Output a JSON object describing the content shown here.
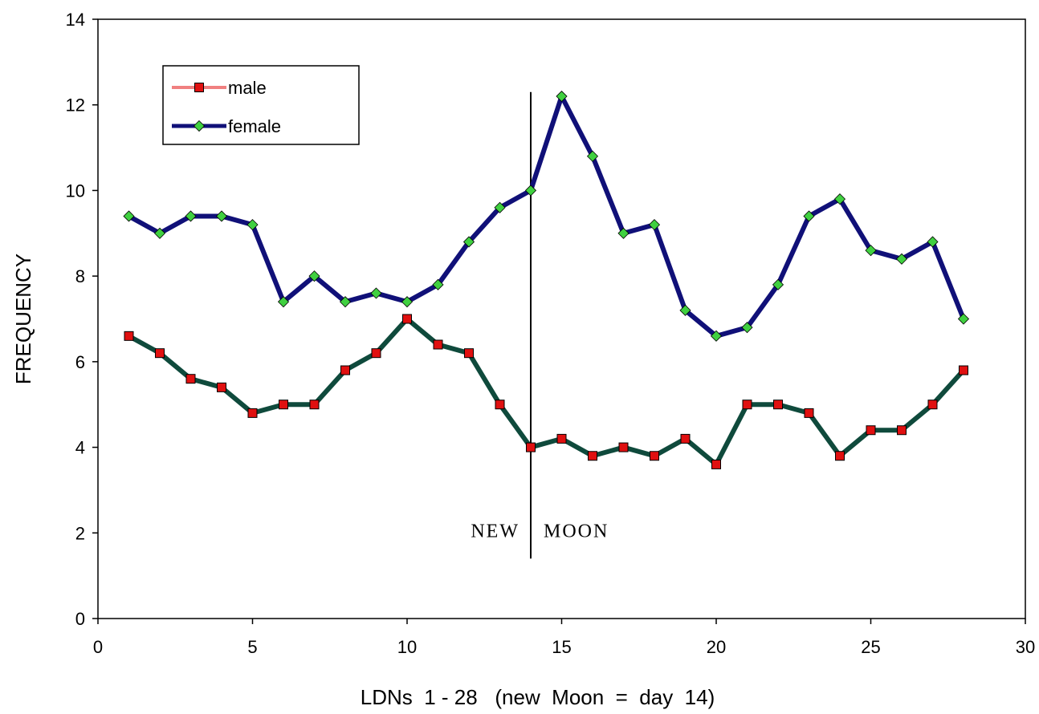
{
  "chart_data": {
    "type": "line",
    "title": "",
    "xlabel": "LDNs  1 - 28   (new  Moon  =  day  14)",
    "ylabel": "FREQUENCY",
    "xlim": [
      0,
      30
    ],
    "ylim": [
      0,
      14
    ],
    "xticks": [
      0,
      5,
      10,
      15,
      20,
      25,
      30
    ],
    "yticks": [
      0,
      2,
      4,
      6,
      8,
      10,
      12,
      14
    ],
    "grid": false,
    "legend_position": "top-left",
    "x": [
      1,
      2,
      3,
      4,
      5,
      6,
      7,
      8,
      9,
      10,
      11,
      12,
      13,
      14,
      15,
      16,
      17,
      18,
      19,
      20,
      21,
      22,
      23,
      24,
      25,
      26,
      27,
      28
    ],
    "series": [
      {
        "name": "male",
        "legend_line_color": "#f08080",
        "line_color": "#0f4a3c",
        "marker": "square",
        "marker_color": "#e01010",
        "values": [
          6.6,
          6.2,
          5.6,
          5.4,
          4.8,
          5.0,
          5.0,
          5.8,
          6.2,
          7.0,
          6.4,
          6.2,
          5.0,
          4.0,
          4.2,
          3.8,
          4.0,
          3.8,
          4.2,
          3.6,
          5.0,
          5.0,
          4.8,
          3.8,
          4.4,
          4.4,
          5.0,
          5.8
        ]
      },
      {
        "name": "female",
        "legend_line_color": "#101078",
        "line_color": "#101078",
        "marker": "diamond",
        "marker_color": "#40d040",
        "values": [
          9.4,
          9.0,
          9.4,
          9.4,
          9.2,
          7.4,
          8.0,
          7.4,
          7.6,
          7.4,
          7.8,
          8.8,
          9.6,
          10.0,
          12.2,
          10.8,
          9.0,
          9.2,
          7.2,
          6.6,
          6.8,
          7.8,
          9.4,
          9.8,
          8.6,
          8.4,
          8.8,
          7.0
        ]
      }
    ],
    "annotations": [
      {
        "type": "vline",
        "x": 14,
        "y_range": [
          1.4,
          12.3
        ]
      },
      {
        "type": "text",
        "text": "NEW",
        "x": 14,
        "y": 1.9,
        "side": "left"
      },
      {
        "type": "text",
        "text": "MOON",
        "x": 14,
        "y": 1.9,
        "side": "right"
      }
    ]
  }
}
